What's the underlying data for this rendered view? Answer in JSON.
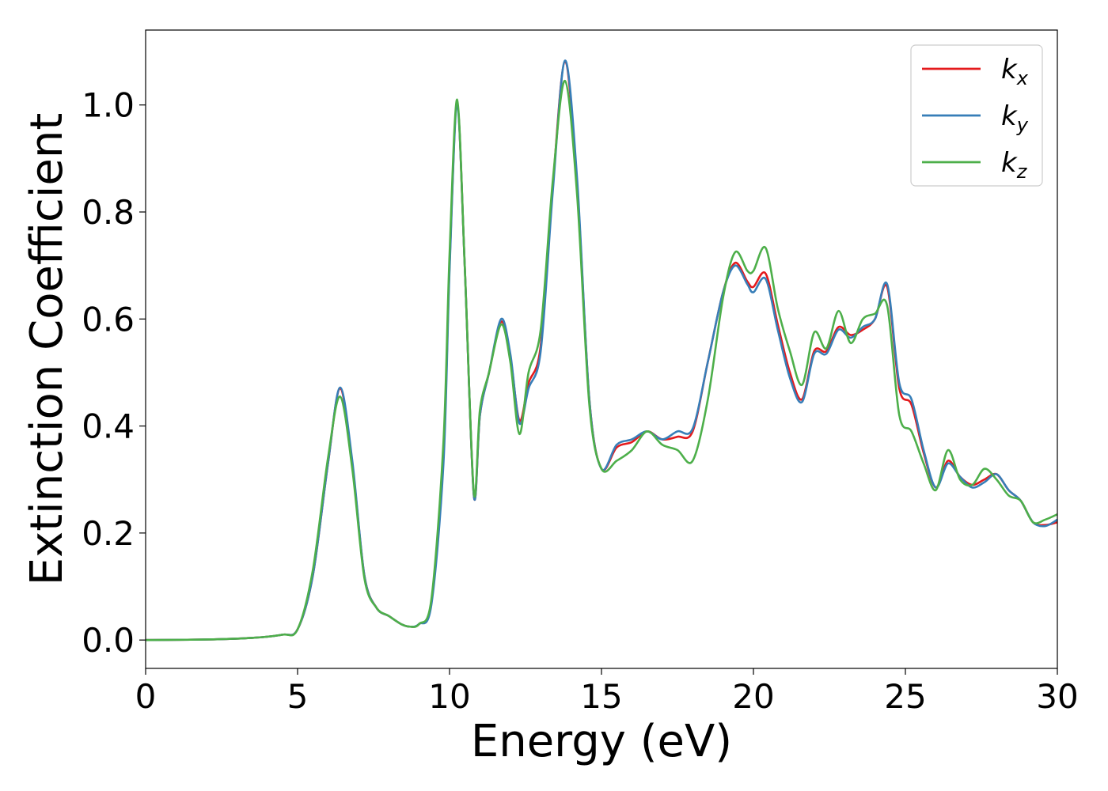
{
  "chart_data": {
    "type": "line",
    "xlabel": "Energy (eV)",
    "ylabel": "Extinction Coefficient",
    "xlim": [
      0,
      30
    ],
    "ylim": [
      -0.053,
      1.14
    ],
    "xticks": [
      0,
      5,
      10,
      15,
      20,
      25,
      30
    ],
    "xtick_labels": [
      "0",
      "5",
      "10",
      "15",
      "20",
      "25",
      "30"
    ],
    "yticks": [
      0.0,
      0.2,
      0.4,
      0.6,
      0.8,
      1.0
    ],
    "ytick_labels": [
      "0.0",
      "0.2",
      "0.4",
      "0.6",
      "0.8",
      "1.0"
    ],
    "grid": false,
    "legend_position": "top-right",
    "series": [
      {
        "name": "k",
        "name_sub": "x",
        "color": "#e41a1c",
        "x": [
          0,
          2,
          3.5,
          4.5,
          5,
          5.5,
          6.0,
          6.4,
          6.8,
          7.2,
          7.6,
          8.0,
          8.4,
          8.7,
          9.0,
          9.4,
          9.8,
          10.0,
          10.25,
          10.5,
          10.8,
          11.0,
          11.3,
          11.7,
          12.0,
          12.3,
          12.6,
          13.0,
          13.4,
          13.8,
          14.2,
          14.6,
          15.0,
          15.5,
          16.0,
          16.5,
          17.0,
          17.5,
          18.0,
          18.5,
          19.0,
          19.4,
          19.8,
          20.0,
          20.4,
          20.8,
          21.2,
          21.6,
          22.0,
          22.4,
          22.8,
          23.2,
          23.6,
          24.0,
          24.4,
          24.8,
          25.2,
          25.6,
          26.0,
          26.4,
          26.8,
          27.2,
          27.6,
          28.0,
          28.4,
          28.8,
          29.2,
          29.6,
          30.0
        ],
        "y": [
          0.0,
          0.001,
          0.004,
          0.01,
          0.02,
          0.12,
          0.33,
          0.47,
          0.33,
          0.12,
          0.06,
          0.045,
          0.03,
          0.025,
          0.03,
          0.07,
          0.35,
          0.7,
          1.0,
          0.7,
          0.27,
          0.42,
          0.5,
          0.595,
          0.53,
          0.41,
          0.48,
          0.55,
          0.85,
          1.08,
          0.85,
          0.45,
          0.32,
          0.36,
          0.37,
          0.39,
          0.375,
          0.38,
          0.39,
          0.52,
          0.65,
          0.705,
          0.67,
          0.66,
          0.685,
          0.59,
          0.5,
          0.45,
          0.54,
          0.54,
          0.585,
          0.57,
          0.58,
          0.6,
          0.66,
          0.47,
          0.44,
          0.35,
          0.285,
          0.335,
          0.305,
          0.29,
          0.3,
          0.31,
          0.28,
          0.26,
          0.22,
          0.215,
          0.22
        ]
      },
      {
        "name": "k",
        "name_sub": "y",
        "color": "#377eb8",
        "x": [
          0,
          2,
          3.5,
          4.5,
          5,
          5.5,
          6.0,
          6.4,
          6.8,
          7.2,
          7.6,
          8.0,
          8.4,
          8.7,
          9.0,
          9.4,
          9.8,
          10.0,
          10.25,
          10.5,
          10.8,
          11.0,
          11.3,
          11.7,
          12.0,
          12.3,
          12.6,
          13.0,
          13.4,
          13.8,
          14.2,
          14.6,
          15.0,
          15.5,
          16.0,
          16.5,
          17.0,
          17.5,
          18.0,
          18.5,
          19.0,
          19.4,
          19.8,
          20.0,
          20.4,
          20.8,
          21.2,
          21.6,
          22.0,
          22.4,
          22.8,
          23.2,
          23.6,
          24.0,
          24.4,
          24.8,
          25.2,
          25.6,
          26.0,
          26.4,
          26.8,
          27.2,
          27.6,
          28.0,
          28.4,
          28.8,
          29.2,
          29.6,
          30.0
        ],
        "y": [
          0.0,
          0.001,
          0.004,
          0.01,
          0.02,
          0.12,
          0.33,
          0.472,
          0.335,
          0.12,
          0.06,
          0.045,
          0.03,
          0.025,
          0.03,
          0.065,
          0.33,
          0.69,
          1.0,
          0.7,
          0.27,
          0.42,
          0.5,
          0.6,
          0.535,
          0.405,
          0.47,
          0.54,
          0.84,
          1.083,
          0.86,
          0.45,
          0.32,
          0.365,
          0.375,
          0.39,
          0.375,
          0.39,
          0.395,
          0.52,
          0.65,
          0.7,
          0.665,
          0.65,
          0.675,
          0.58,
          0.49,
          0.445,
          0.535,
          0.535,
          0.58,
          0.565,
          0.585,
          0.6,
          0.665,
          0.48,
          0.45,
          0.355,
          0.285,
          0.33,
          0.305,
          0.285,
          0.295,
          0.31,
          0.28,
          0.26,
          0.22,
          0.213,
          0.225
        ]
      },
      {
        "name": "k",
        "name_sub": "z",
        "color": "#4daf4a",
        "x": [
          0,
          2,
          3.5,
          4.5,
          5,
          5.5,
          6.0,
          6.4,
          6.8,
          7.2,
          7.6,
          8.0,
          8.4,
          8.7,
          9.0,
          9.4,
          9.8,
          10.0,
          10.25,
          10.5,
          10.8,
          11.0,
          11.3,
          11.7,
          12.0,
          12.3,
          12.6,
          13.0,
          13.4,
          13.8,
          14.2,
          14.6,
          15.0,
          15.5,
          16.0,
          16.5,
          17.0,
          17.5,
          18.0,
          18.5,
          19.0,
          19.4,
          19.8,
          20.0,
          20.4,
          20.8,
          21.2,
          21.6,
          22.0,
          22.4,
          22.8,
          23.2,
          23.6,
          24.0,
          24.4,
          24.8,
          25.2,
          25.6,
          26.0,
          26.4,
          26.8,
          27.2,
          27.6,
          28.0,
          28.4,
          28.8,
          29.2,
          29.6,
          30.0
        ],
        "y": [
          0.0,
          0.001,
          0.004,
          0.01,
          0.02,
          0.13,
          0.34,
          0.455,
          0.32,
          0.115,
          0.06,
          0.045,
          0.03,
          0.025,
          0.03,
          0.075,
          0.37,
          0.72,
          1.01,
          0.7,
          0.275,
          0.43,
          0.5,
          0.59,
          0.52,
          0.385,
          0.5,
          0.58,
          0.86,
          1.045,
          0.83,
          0.44,
          0.32,
          0.335,
          0.355,
          0.39,
          0.365,
          0.355,
          0.335,
          0.45,
          0.64,
          0.725,
          0.69,
          0.69,
          0.733,
          0.62,
          0.54,
          0.477,
          0.575,
          0.545,
          0.615,
          0.555,
          0.6,
          0.61,
          0.625,
          0.42,
          0.39,
          0.33,
          0.28,
          0.355,
          0.3,
          0.29,
          0.32,
          0.3,
          0.27,
          0.26,
          0.22,
          0.225,
          0.235
        ]
      }
    ]
  }
}
